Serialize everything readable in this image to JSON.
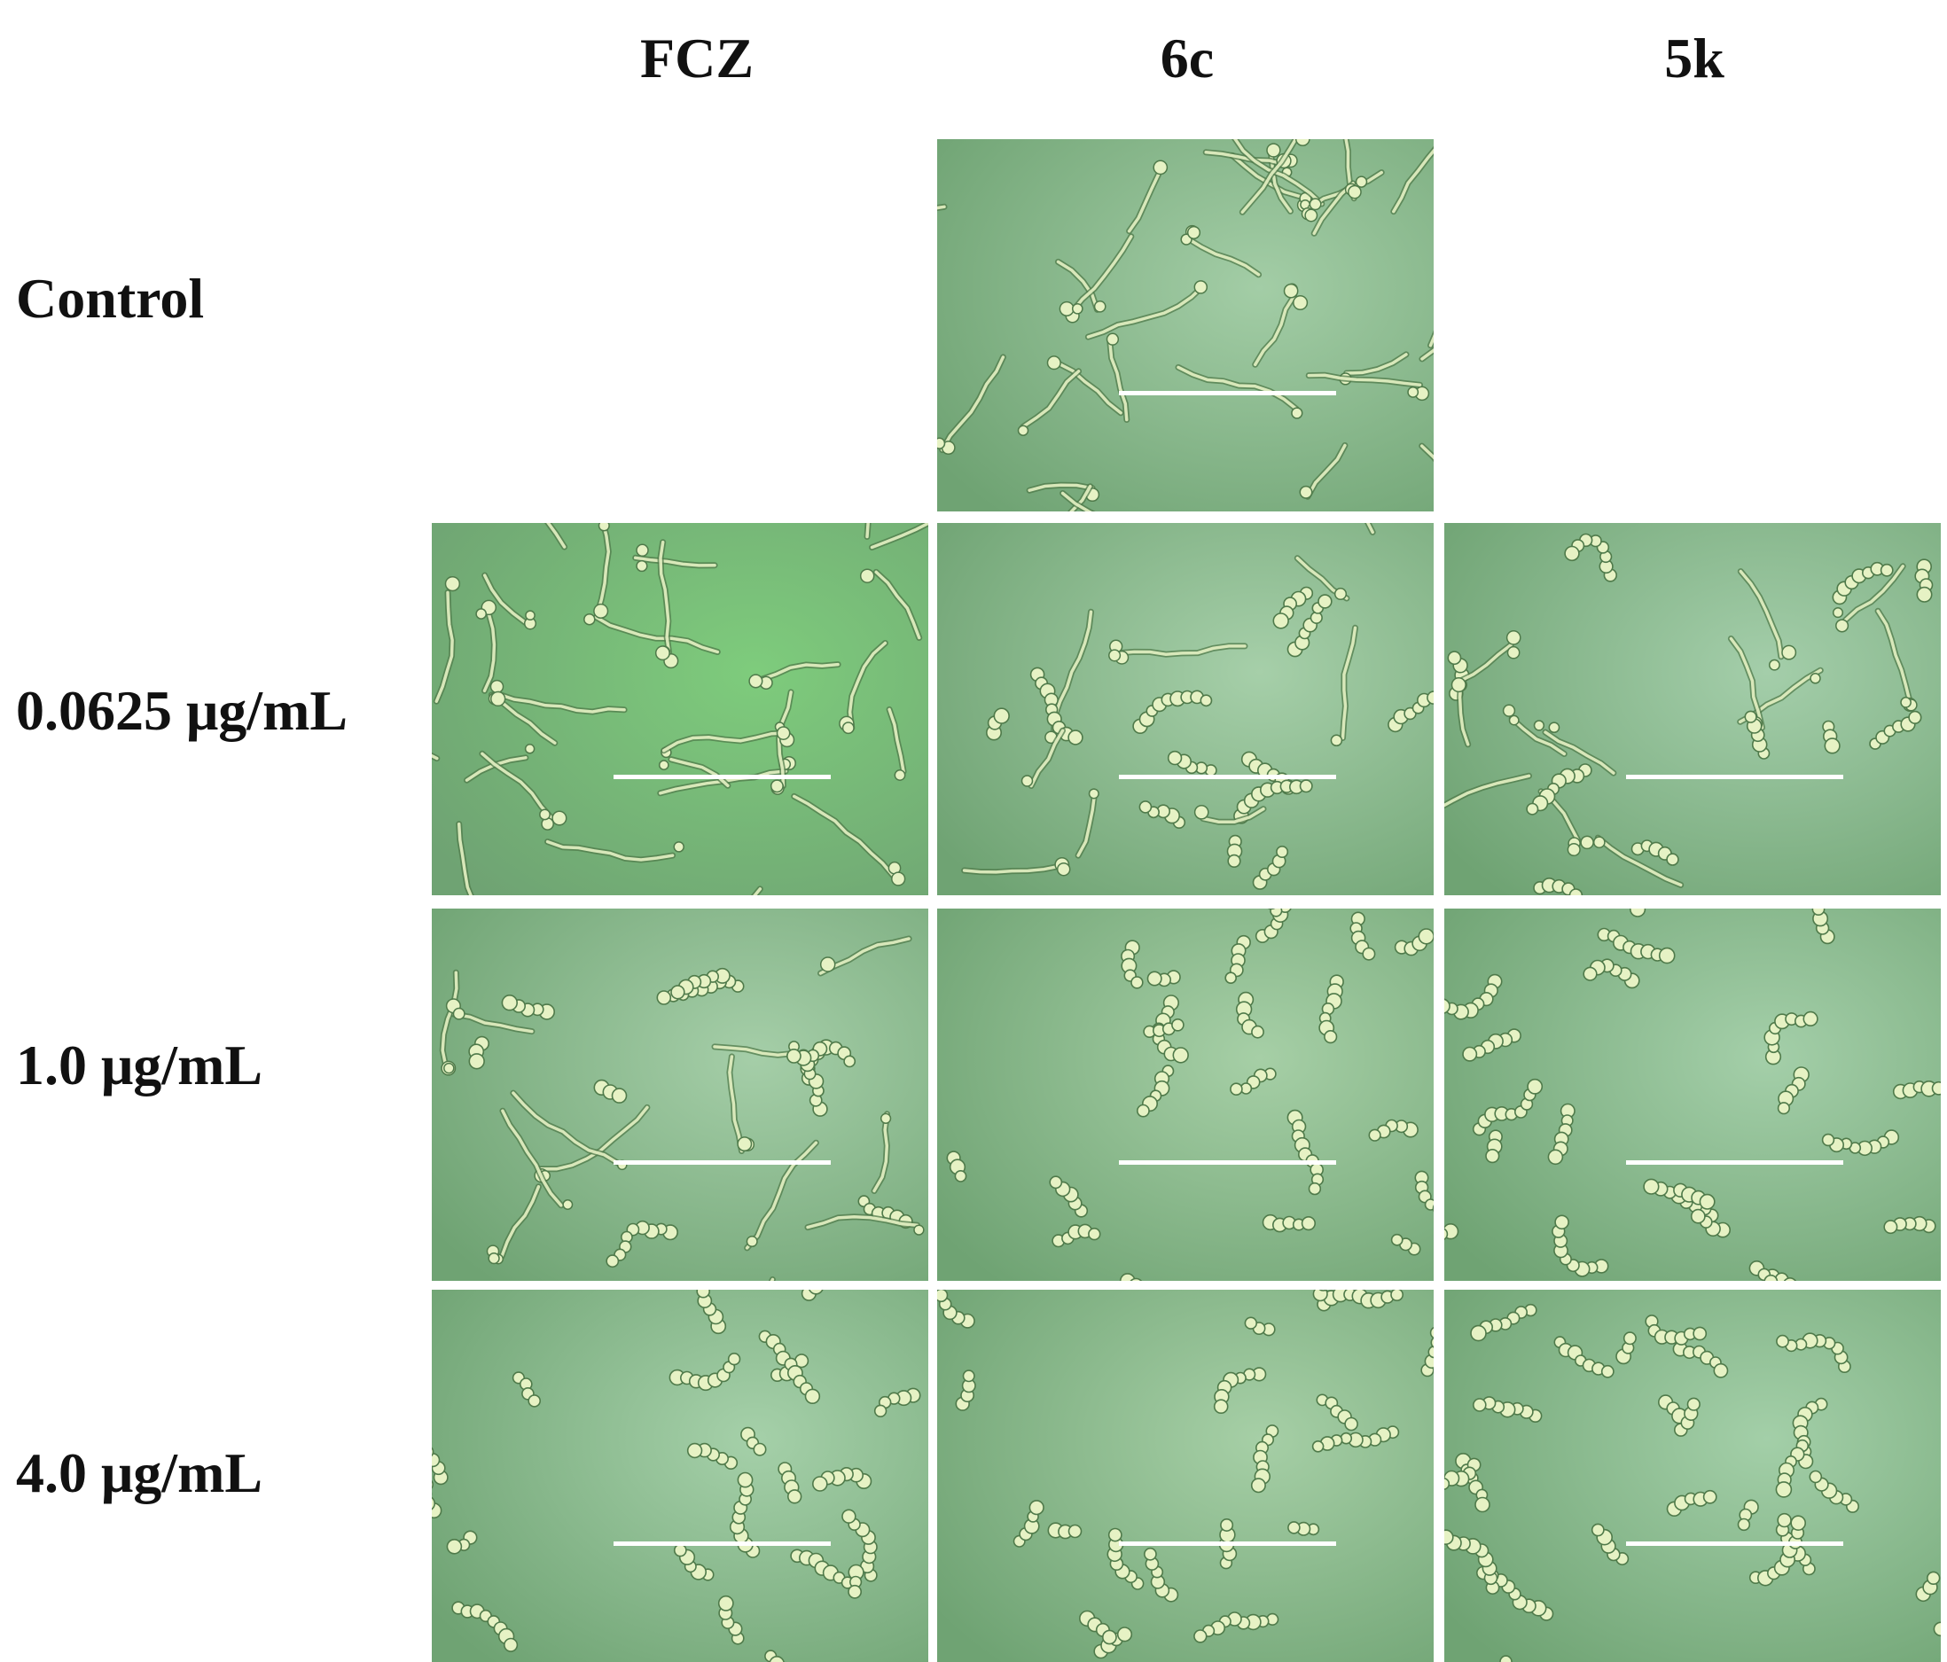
{
  "columns": [
    {
      "label": "FCZ"
    },
    {
      "label": "6c"
    },
    {
      "label": "5k"
    }
  ],
  "rows": [
    {
      "label": "Control"
    },
    {
      "label": "0.0625 μg/mL"
    },
    {
      "label": "1.0 μg/mL"
    },
    {
      "label": "4.0 μg/mL"
    }
  ],
  "panels": [
    {
      "row": 0,
      "col": 1,
      "bg": "#a3cda6",
      "morphology": "hyphae",
      "density": 0.9
    },
    {
      "row": 1,
      "col": 0,
      "bg": "#7ecc7c",
      "morphology": "hyphae",
      "density": 0.75
    },
    {
      "row": 1,
      "col": 1,
      "bg": "#a6cfa9",
      "morphology": "mixed",
      "density": 0.5
    },
    {
      "row": 1,
      "col": 2,
      "bg": "#a4ceaa",
      "morphology": "mixed",
      "density": 0.55
    },
    {
      "row": 2,
      "col": 0,
      "bg": "#a5cea8",
      "morphology": "mixed",
      "density": 0.6
    },
    {
      "row": 2,
      "col": 1,
      "bg": "#a6cfa6",
      "morphology": "yeast",
      "density": 0.55
    },
    {
      "row": 2,
      "col": 2,
      "bg": "#a4cfa9",
      "morphology": "yeast",
      "density": 0.5
    },
    {
      "row": 3,
      "col": 0,
      "bg": "#a5d0a9",
      "morphology": "yeast",
      "density": 0.55
    },
    {
      "row": 3,
      "col": 1,
      "bg": "#a6cfa6",
      "morphology": "yeast",
      "density": 0.4
    },
    {
      "row": 3,
      "col": 2,
      "bg": "#a3cfa8",
      "morphology": "yeast",
      "density": 0.65
    }
  ],
  "colors": {
    "cell_fill": "#e6f2c4",
    "cell_edge": "#4f7a4a",
    "scale_bar": "#ffffff"
  }
}
